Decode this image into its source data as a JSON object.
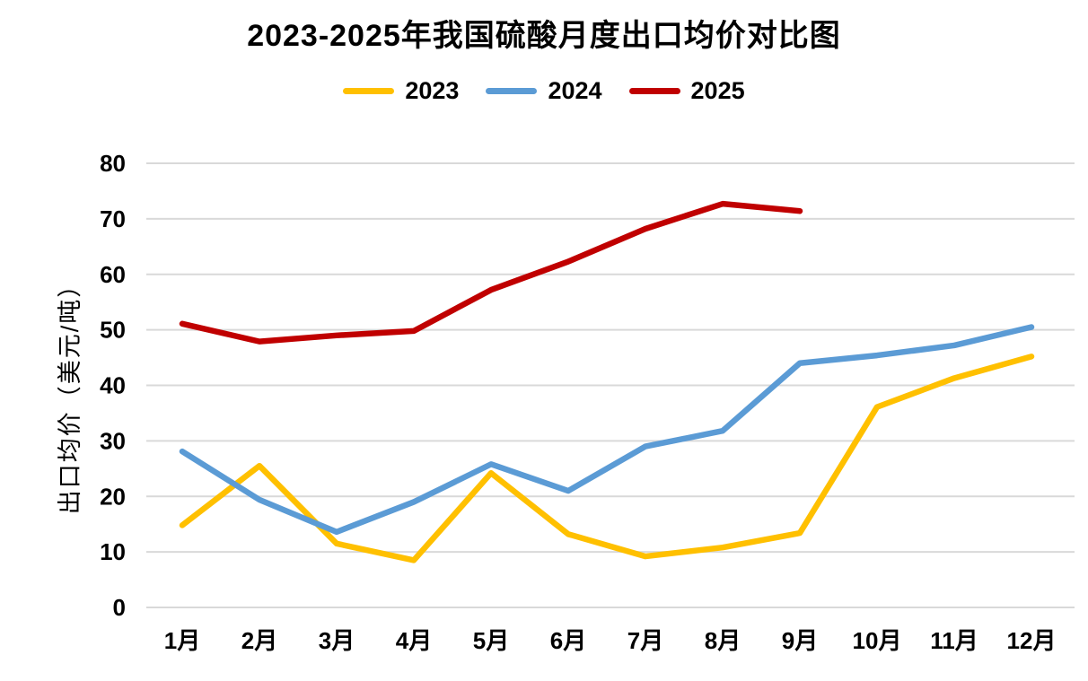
{
  "title": "2023-2025年我国硫酸月度出口均价对比图",
  "colors": {
    "series_2023": "#FFC000",
    "series_2024": "#5B9BD5",
    "series_2025": "#C00000",
    "gridline": "#d9d9d9",
    "text": "#000000",
    "background": "#ffffff"
  },
  "chart_data": {
    "type": "line",
    "title": "2023-2025年我国硫酸月度出口均价对比图",
    "xlabel": "",
    "ylabel": "出口均价（美元/吨）",
    "categories": [
      "1月",
      "2月",
      "3月",
      "4月",
      "5月",
      "6月",
      "7月",
      "8月",
      "9月",
      "10月",
      "11月",
      "12月"
    ],
    "series": [
      {
        "name": "2023",
        "color": "#FFC000",
        "values": [
          14.8,
          25.5,
          11.5,
          8.5,
          24.2,
          13.2,
          9.2,
          10.8,
          13.4,
          36.1,
          41.3,
          45.2
        ]
      },
      {
        "name": "2024",
        "color": "#5B9BD5",
        "values": [
          28.1,
          19.4,
          13.6,
          19.0,
          25.8,
          21.0,
          29.0,
          31.8,
          44.0,
          45.4,
          47.2,
          50.5
        ]
      },
      {
        "name": "2025",
        "color": "#C00000",
        "values": [
          51.1,
          47.9,
          49.0,
          49.8,
          57.2,
          62.3,
          68.2,
          72.7,
          71.4
        ]
      }
    ],
    "ylim": [
      0,
      80
    ],
    "yticks": [
      0,
      10,
      20,
      30,
      40,
      50,
      60,
      70,
      80
    ],
    "grid": true,
    "legend_position": "top"
  }
}
